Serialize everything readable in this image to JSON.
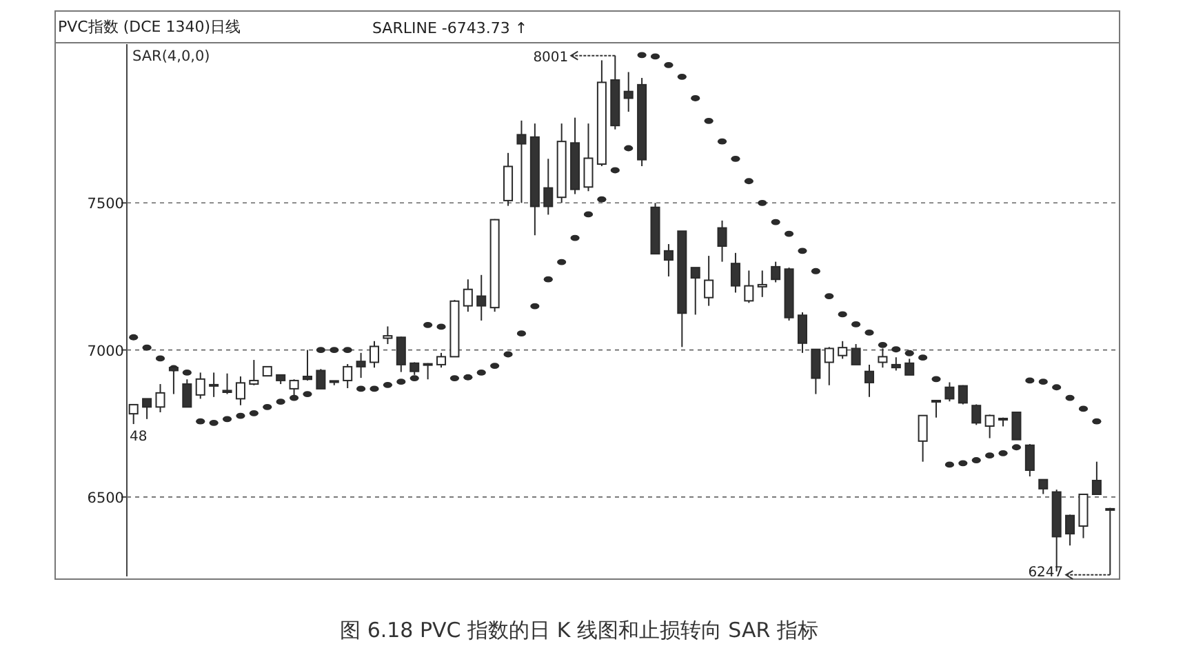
{
  "chart_data": {
    "type": "candlestick",
    "title": "PVC指数 (DCE 1340)日线",
    "subtitle": "SARLINE  -6743.73 ↑",
    "categories": [
      null,
      null,
      null,
      null,
      null,
      null,
      null,
      null,
      null,
      null,
      null,
      null,
      null,
      null,
      null,
      null,
      null,
      null,
      null,
      null,
      null,
      null,
      null,
      null,
      null,
      null,
      null,
      null,
      null,
      null,
      null,
      null,
      null,
      null,
      null,
      null,
      null,
      null,
      null,
      null,
      null,
      null,
      null,
      null,
      null,
      null,
      null,
      null,
      null,
      null,
      null,
      null,
      null,
      null,
      null,
      null,
      null,
      null,
      null,
      null,
      null,
      null,
      null,
      null,
      null,
      null,
      null,
      null,
      null,
      null,
      null,
      null,
      null,
      null
    ],
    "ohlc": [
      [
        6783,
        6815,
        6748,
        6814
      ],
      [
        6834,
        6834,
        6765,
        6806
      ],
      [
        6806,
        6884,
        6788,
        6854
      ],
      [
        6940,
        6943,
        6850,
        6930
      ],
      [
        6884,
        6900,
        6806,
        6806
      ],
      [
        6847,
        6923,
        6834,
        6901
      ],
      [
        6880,
        6923,
        6840,
        6882
      ],
      [
        6862,
        6920,
        6850,
        6856
      ],
      [
        6834,
        6910,
        6812,
        6888
      ],
      [
        6884,
        6966,
        6880,
        6896
      ],
      [
        6912,
        6945,
        6910,
        6943
      ],
      [
        6915,
        6917,
        6884,
        6896
      ],
      [
        6868,
        6900,
        6846,
        6896
      ],
      [
        6910,
        7000,
        6896,
        6900
      ],
      [
        6930,
        6935,
        6868,
        6868
      ],
      [
        6895,
        6895,
        6880,
        6890
      ],
      [
        6896,
        6952,
        6870,
        6943
      ],
      [
        6961,
        6990,
        6905,
        6943
      ],
      [
        6958,
        7030,
        6940,
        7012
      ],
      [
        7040,
        7080,
        7020,
        7048
      ],
      [
        7043,
        7045,
        6925,
        6950
      ],
      [
        6955,
        6958,
        6915,
        6927
      ],
      [
        6950,
        6955,
        6900,
        6953
      ],
      [
        6950,
        6990,
        6940,
        6977
      ],
      [
        6977,
        7170,
        6977,
        7166
      ],
      [
        7150,
        7240,
        7130,
        7206
      ],
      [
        7183,
        7255,
        7100,
        7150
      ],
      [
        7144,
        7445,
        7130,
        7443
      ],
      [
        7508,
        7670,
        7490,
        7624
      ],
      [
        7732,
        7780,
        7500,
        7701
      ],
      [
        7724,
        7770,
        7390,
        7488
      ],
      [
        7551,
        7650,
        7460,
        7488
      ],
      [
        7519,
        7770,
        7500,
        7709
      ],
      [
        7704,
        7790,
        7530,
        7546
      ],
      [
        7554,
        7770,
        7540,
        7652
      ],
      [
        7632,
        7985,
        7625,
        7910
      ],
      [
        7918,
        8001,
        7750,
        7763
      ],
      [
        7879,
        7945,
        7810,
        7856
      ],
      [
        7902,
        7925,
        7625,
        7647
      ],
      [
        7485,
        7500,
        7327,
        7327
      ],
      [
        7337,
        7360,
        7250,
        7306
      ],
      [
        7404,
        7404,
        7010,
        7125
      ],
      [
        7280,
        7280,
        7120,
        7245
      ],
      [
        7178,
        7320,
        7150,
        7237
      ],
      [
        7415,
        7440,
        7300,
        7353
      ],
      [
        7294,
        7330,
        7195,
        7218
      ],
      [
        7167,
        7270,
        7160,
        7218
      ],
      [
        7215,
        7270,
        7180,
        7222
      ],
      [
        7283,
        7300,
        7230,
        7240
      ],
      [
        7275,
        7280,
        7100,
        7110
      ],
      [
        7118,
        7128,
        6990,
        7023
      ],
      [
        7002,
        7002,
        6850,
        6904
      ],
      [
        6958,
        7010,
        6880,
        7005
      ],
      [
        6981,
        7030,
        6970,
        7008
      ],
      [
        7005,
        7020,
        6950,
        6950
      ],
      [
        6927,
        6950,
        6840,
        6889
      ],
      [
        6958,
        7005,
        6940,
        6977
      ],
      [
        6950,
        6975,
        6930,
        6940
      ],
      [
        6955,
        6970,
        6915,
        6915
      ],
      [
        6690,
        6777,
        6620,
        6777
      ],
      [
        6825,
        6830,
        6770,
        6828
      ],
      [
        6873,
        6890,
        6825,
        6834
      ],
      [
        6878,
        6880,
        6815,
        6820
      ],
      [
        6811,
        6815,
        6745,
        6752
      ],
      [
        6741,
        6780,
        6700,
        6777
      ],
      [
        6765,
        6770,
        6740,
        6767
      ],
      [
        6788,
        6790,
        6695,
        6695
      ],
      [
        6676,
        6680,
        6570,
        6591
      ],
      [
        6559,
        6560,
        6510,
        6528
      ],
      [
        6517,
        6525,
        6247,
        6365
      ],
      [
        6437,
        6440,
        6335,
        6375
      ],
      [
        6401,
        6510,
        6360,
        6509
      ],
      [
        6556,
        6620,
        6509,
        6509
      ],
      [
        6460,
        6463,
        6235,
        6460
      ]
    ],
    "series": [
      {
        "name": "SAR(4,0,0)",
        "type": "scatter",
        "color": "#2a2a2a",
        "values": [
          7043,
          7008,
          6971,
          6938,
          6923,
          6757,
          6752,
          6765,
          6776,
          6785,
          6806,
          6824,
          6837,
          6850,
          7000,
          7000,
          7000,
          6868,
          6868,
          6881,
          6892,
          6904,
          7085,
          7079,
          6904,
          6907,
          6923,
          6946,
          6985,
          7056,
          7149,
          7240,
          7299,
          7381,
          7461,
          7512,
          7611,
          7686,
          8003,
          7998,
          7969,
          7929,
          7856,
          7779,
          7709,
          7650,
          7574,
          7500,
          7435,
          7395,
          7337,
          7268,
          7183,
          7121,
          7087,
          7059,
          7017,
          7002,
          6989,
          6974,
          6901,
          6610,
          6615,
          6625,
          6641,
          6649,
          6669,
          6896,
          6892,
          6873,
          6837,
          6800,
          6757,
          null
        ]
      }
    ],
    "ylim": [
      6230,
      8040
    ],
    "yticks": [
      6500,
      7000,
      7500
    ],
    "grid": "y",
    "legend": "top left",
    "annotations": [
      "8001",
      "6247",
      "48",
      "图 6.18  PVC 指数的日 K 线图和止损转向 SAR 指标"
    ]
  }
}
